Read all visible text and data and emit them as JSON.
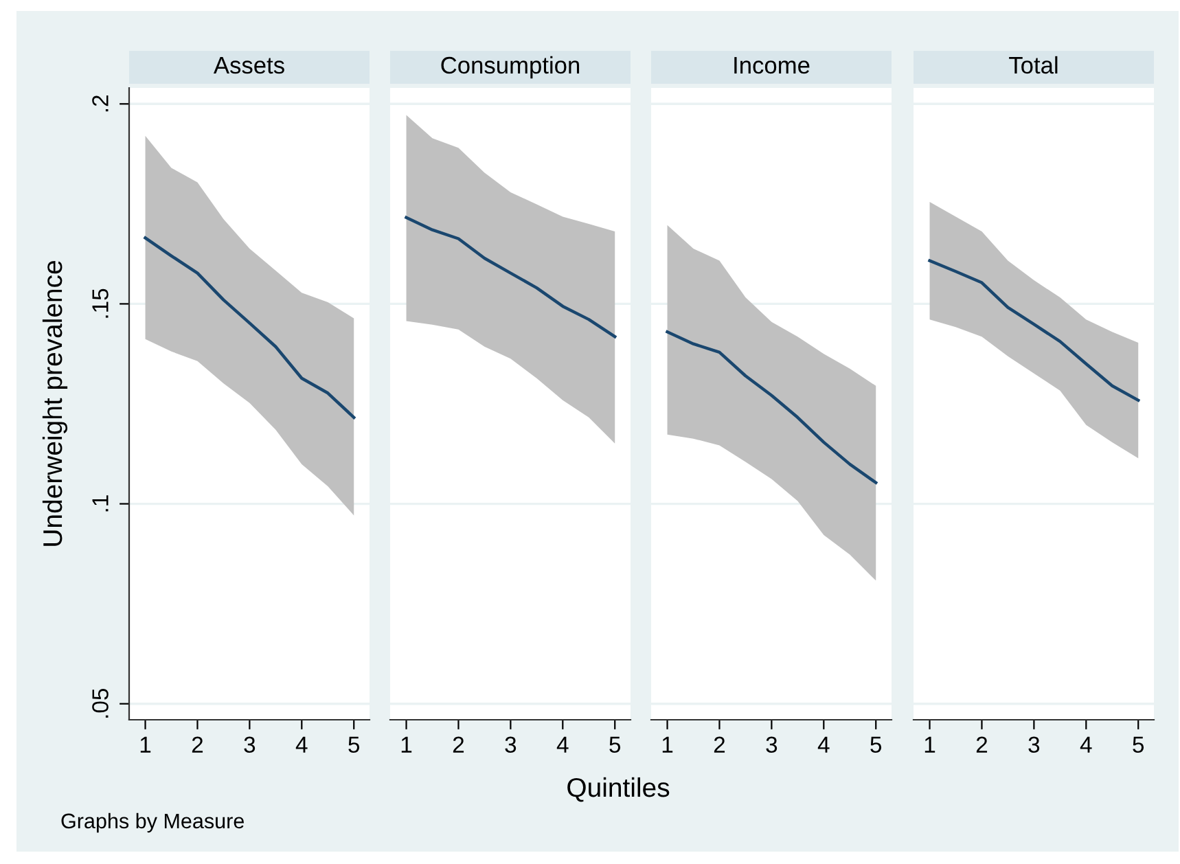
{
  "chart_data": [
    {
      "type": "line",
      "title": "Assets",
      "ylabel": "Underweight prevalence",
      "annotations": [
        "Graphs by Measure"
      ],
      "x": [
        1,
        1.5,
        2,
        2.5,
        3,
        3.5,
        4,
        4.5,
        5
      ],
      "xlim": [
        0.69,
        5.3
      ],
      "xticks": [
        1,
        2,
        3,
        4,
        5
      ],
      "ylim": [
        0.046,
        0.204
      ],
      "yticks": [
        {
          "value": 0.05,
          "label": ".05"
        },
        {
          "value": 0.1,
          "label": ".1"
        },
        {
          "value": 0.15,
          "label": ".15"
        },
        {
          "value": 0.2,
          "label": ".2"
        }
      ],
      "grid": "y",
      "series": [
        {
          "color": "#1a476f",
          "values": [
            0.1665,
            0.162,
            0.1577,
            0.151,
            0.1452,
            0.1393,
            0.1314,
            0.1277,
            0.1216
          ],
          "upper": [
            0.192,
            0.184,
            0.1804,
            0.1712,
            0.1638,
            0.1583,
            0.1528,
            0.1504,
            0.1464
          ],
          "lower": [
            0.1412,
            0.1381,
            0.1357,
            0.1301,
            0.1252,
            0.1185,
            0.1099,
            0.1044,
            0.0971
          ]
        }
      ]
    },
    {
      "type": "line",
      "title": "Consumption",
      "x": [
        1,
        1.5,
        2,
        2.5,
        3,
        3.5,
        4,
        4.5,
        5
      ],
      "xlim": [
        0.69,
        5.3
      ],
      "xticks": [
        1,
        2,
        3,
        4,
        5
      ],
      "ylim": [
        0.046,
        0.204
      ],
      "yticks": [
        0.05,
        0.1,
        0.15,
        0.2
      ],
      "grid": "y",
      "tick_labels": "x",
      "series": [
        {
          "color": "#1a476f",
          "values": [
            0.1716,
            0.1685,
            0.1663,
            0.1614,
            0.1577,
            0.154,
            0.1494,
            0.1461,
            0.1418
          ],
          "upper": [
            0.1972,
            0.1914,
            0.189,
            0.1828,
            0.1779,
            0.1749,
            0.1718,
            0.17,
            0.1681
          ],
          "lower": [
            0.1457,
            0.1448,
            0.1436,
            0.1393,
            0.1363,
            0.1314,
            0.1259,
            0.1216,
            0.1151
          ]
        }
      ]
    },
    {
      "type": "line",
      "title": "Income",
      "xlabel": "Quintiles",
      "x": [
        1,
        1.5,
        2,
        2.5,
        3,
        3.5,
        4,
        4.5,
        5
      ],
      "xlim": [
        0.69,
        5.3
      ],
      "xticks": [
        1,
        2,
        3,
        4,
        5
      ],
      "ylim": [
        0.046,
        0.204
      ],
      "yticks": [
        0.05,
        0.1,
        0.15,
        0.2
      ],
      "grid": "y",
      "tick_labels": "x",
      "series": [
        {
          "color": "#1a476f",
          "values": [
            0.143,
            0.14,
            0.1379,
            0.132,
            0.1271,
            0.1216,
            0.1154,
            0.1099,
            0.1053
          ],
          "upper": [
            0.1697,
            0.1638,
            0.1608,
            0.1516,
            0.1455,
            0.1418,
            0.1375,
            0.1338,
            0.1295
          ],
          "lower": [
            0.1173,
            0.1163,
            0.1146,
            0.1105,
            0.1062,
            0.1007,
            0.0922,
            0.0873,
            0.0808
          ]
        }
      ]
    },
    {
      "type": "line",
      "title": "Total",
      "x": [
        1,
        1.5,
        2,
        2.5,
        3,
        3.5,
        4,
        4.5,
        5
      ],
      "xlim": [
        0.69,
        5.3
      ],
      "xticks": [
        1,
        2,
        3,
        4,
        5
      ],
      "ylim": [
        0.046,
        0.204
      ],
      "yticks": [
        0.05,
        0.1,
        0.15,
        0.2
      ],
      "grid": "y",
      "tick_labels": "x",
      "series": [
        {
          "color": "#1a476f",
          "values": [
            0.1608,
            0.1581,
            0.1553,
            0.1491,
            0.1449,
            0.1406,
            0.135,
            0.1295,
            0.1259
          ],
          "upper": [
            0.1755,
            0.1718,
            0.1681,
            0.1608,
            0.1559,
            0.1516,
            0.1461,
            0.143,
            0.1403
          ],
          "lower": [
            0.1461,
            0.1442,
            0.1418,
            0.1369,
            0.1326,
            0.1283,
            0.1197,
            0.1154,
            0.1114
          ]
        }
      ]
    }
  ]
}
